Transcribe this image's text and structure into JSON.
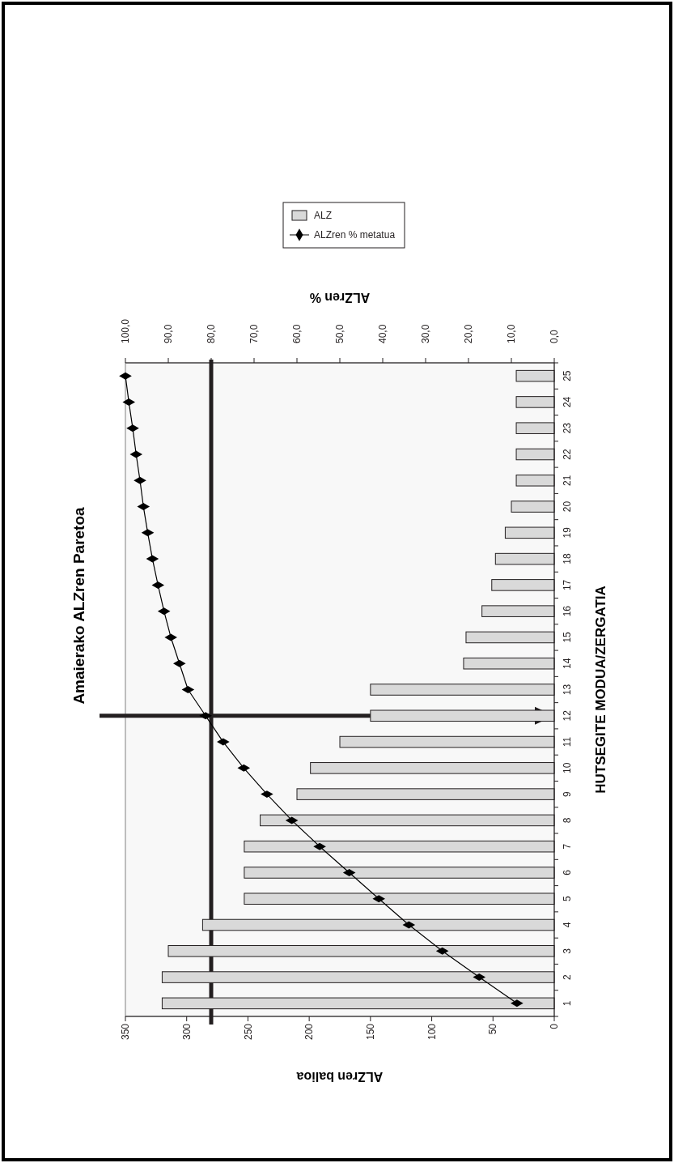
{
  "chart_data": {
    "type": "bar",
    "orientation": "horizontal",
    "title": "Amaierako ALZren Paretoa",
    "xlabel": "ALZren balioa",
    "x2label": "ALZren %",
    "ylabel": "HUTSEGITE MODUA/ZERGATIA",
    "categories": [
      "25",
      "24",
      "23",
      "22",
      "21",
      "20",
      "19",
      "18",
      "17",
      "16",
      "15",
      "14",
      "13",
      "12",
      "11",
      "10",
      "9",
      "8",
      "7",
      "6",
      "5",
      "4",
      "3",
      "2",
      "1"
    ],
    "series": [
      {
        "name": "ALZ",
        "color": "#d9d9d9",
        "values": [
          31,
          31,
          31,
          31,
          31,
          35,
          40,
          48,
          51,
          59,
          72,
          74,
          150,
          150,
          175,
          199,
          210,
          240,
          253,
          253,
          253,
          287,
          315,
          320,
          320
        ]
      },
      {
        "name": "ALZren % metatua",
        "type": "line",
        "axis": "x2",
        "color": "#000000",
        "marker": "diamond",
        "values": [
          100.0,
          99.2,
          98.3,
          97.5,
          96.6,
          95.8,
          94.8,
          93.7,
          92.4,
          91.0,
          89.4,
          87.4,
          85.4,
          81.3,
          77.2,
          72.4,
          67.0,
          61.2,
          54.7,
          47.8,
          40.9,
          33.9,
          26.1,
          17.5,
          8.7
        ]
      }
    ],
    "xlim": [
      350,
      0
    ],
    "xticks": [
      0,
      50,
      100,
      150,
      200,
      250,
      300,
      350
    ],
    "x2lim": [
      100,
      0
    ],
    "x2ticks": [
      {
        "value": 0,
        "label": "0,0"
      },
      {
        "value": 10,
        "label": "10,0"
      },
      {
        "value": 20,
        "label": "20,0"
      },
      {
        "value": 30,
        "label": "30,0"
      },
      {
        "value": 40,
        "label": "40,0"
      },
      {
        "value": 50,
        "label": "50,0"
      },
      {
        "value": 60,
        "label": "60,0"
      },
      {
        "value": 70,
        "label": "70,0"
      },
      {
        "value": 80,
        "label": "80,0"
      },
      {
        "value": 90,
        "label": "90,0"
      },
      {
        "value": 100,
        "label": "100,0"
      }
    ],
    "ref_lines": [
      {
        "axis": "x2",
        "value": 80,
        "color": "#231f20"
      },
      {
        "axis": "y",
        "value": "12",
        "color": "#231f20"
      }
    ],
    "legend": "top",
    "grid": false
  }
}
